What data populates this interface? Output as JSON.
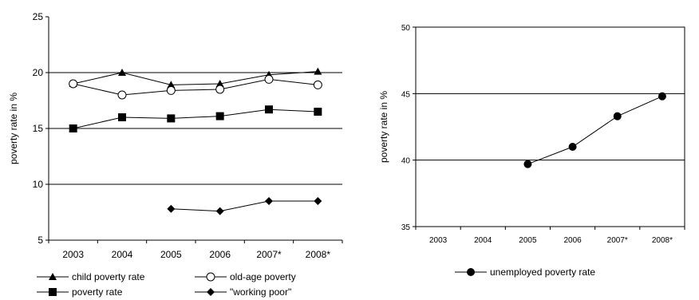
{
  "chart_data": [
    {
      "type": "line",
      "ylabel": "poverty rate in %",
      "xlabel": "",
      "categories": [
        "2003",
        "2004",
        "2005",
        "2006",
        "2007*",
        "2008*"
      ],
      "ylim": [
        5,
        25
      ],
      "yticks": [
        5,
        10,
        15,
        20,
        25
      ],
      "gridlines": [
        10,
        15,
        20
      ],
      "legend_position": "bottom",
      "series": [
        {
          "name": "child poverty rate",
          "marker": "triangle",
          "values": [
            19.0,
            20.0,
            18.9,
            19.0,
            19.8,
            20.1
          ]
        },
        {
          "name": "old-age poverty",
          "marker": "circle-open",
          "values": [
            19.0,
            18.0,
            18.4,
            18.5,
            19.4,
            18.9
          ]
        },
        {
          "name": "poverty rate",
          "marker": "square",
          "values": [
            15.0,
            16.0,
            15.9,
            16.1,
            16.7,
            16.5
          ]
        },
        {
          "name": "\"working poor\"",
          "marker": "diamond",
          "values": [
            null,
            null,
            7.8,
            7.6,
            8.5,
            8.5
          ]
        }
      ]
    },
    {
      "type": "line",
      "ylabel": "poverty rate in %",
      "xlabel": "",
      "categories": [
        "2003",
        "2004",
        "2005",
        "2006",
        "2007*",
        "2008*"
      ],
      "ylim": [
        35,
        50
      ],
      "yticks": [
        35,
        40,
        45,
        50
      ],
      "gridlines": [
        40,
        45
      ],
      "legend_position": "bottom",
      "series": [
        {
          "name": "unemployed poverty rate",
          "marker": "circle",
          "values": [
            null,
            null,
            39.7,
            41.0,
            43.3,
            44.8
          ]
        }
      ]
    }
  ]
}
